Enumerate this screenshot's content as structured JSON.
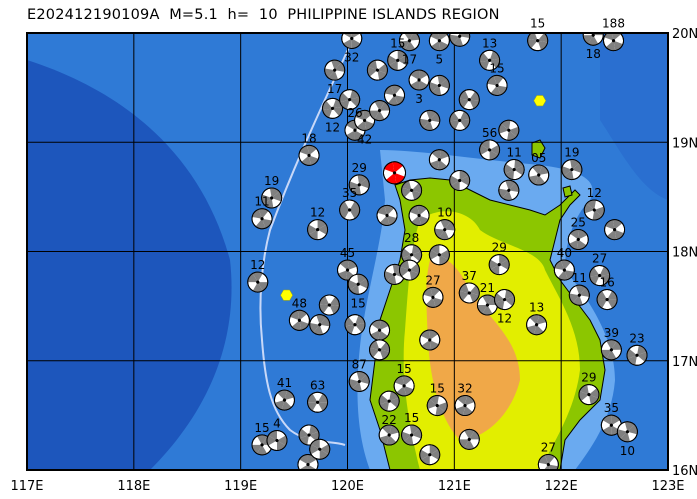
{
  "title": "E202412190109A  M=5.1  h=  10  PHILIPPINE ISLANDS REGION",
  "map": {
    "lon_range": [
      117,
      123
    ],
    "lat_range": [
      16,
      20
    ],
    "lon_ticks": [
      "117E",
      "118E",
      "119E",
      "120E",
      "121E",
      "122E",
      "123E"
    ],
    "lat_ticks": [
      "20N",
      "19N",
      "18N",
      "17N",
      "16N"
    ],
    "grid": true,
    "colors": {
      "deep_ocean": "#1f5fc8",
      "ocean": "#2f7ad6",
      "shelf": "#6aaaf0",
      "land_low": "#8cc600",
      "land_mid": "#e2ee00",
      "land_high": "#f0a848",
      "compressional": "#808080",
      "event": "#ff0000",
      "marker": "#ffff00"
    }
  },
  "event": {
    "lon": 120.44,
    "lat": 18.72,
    "strike": 20,
    "color": "#ff0000"
  },
  "markers": [
    {
      "lon": 119.43,
      "lat": 17.6
    },
    {
      "lon": 121.8,
      "lat": 19.38
    }
  ],
  "mechanisms": [
    {
      "lon": 120.04,
      "lat": 19.95,
      "label": "32",
      "strike": 30
    },
    {
      "lon": 119.88,
      "lat": 19.66,
      "label": "17",
      "strike": 70
    },
    {
      "lon": 119.86,
      "lat": 19.31,
      "label": "12",
      "strike": 110
    },
    {
      "lon": 119.64,
      "lat": 18.88,
      "label": "18",
      "strike": 20
    },
    {
      "lon": 119.29,
      "lat": 18.49,
      "label": "19",
      "strike": 80
    },
    {
      "lon": 119.2,
      "lat": 18.3,
      "label": "11",
      "strike": 10
    },
    {
      "lon": 119.72,
      "lat": 18.2,
      "label": "12",
      "strike": 90
    },
    {
      "lon": 119.16,
      "lat": 17.72,
      "label": "12",
      "strike": 0
    },
    {
      "lon": 119.41,
      "lat": 16.64,
      "label": "41",
      "strike": 45
    },
    {
      "lon": 119.72,
      "lat": 16.62,
      "label": "63",
      "strike": 120
    },
    {
      "lon": 119.2,
      "lat": 16.23,
      "label": "15",
      "strike": 60
    },
    {
      "lon": 119.34,
      "lat": 16.27,
      "label": "4",
      "strike": 150
    },
    {
      "lon": 119.63,
      "lat": 16.05,
      "label": "",
      "strike": 30
    },
    {
      "lon": 120.11,
      "lat": 16.81,
      "label": "87",
      "strike": 75
    },
    {
      "lon": 120.53,
      "lat": 16.77,
      "label": "15",
      "strike": 20
    },
    {
      "lon": 120.39,
      "lat": 16.63,
      "label": "22",
      "strike": 100
    },
    {
      "lon": 120.84,
      "lat": 16.59,
      "label": "15",
      "strike": 160
    },
    {
      "lon": 121.1,
      "lat": 16.59,
      "label": "32",
      "strike": 40
    },
    {
      "lon": 120.6,
      "lat": 16.32,
      "label": "15",
      "strike": 80
    },
    {
      "lon": 121.14,
      "lat": 17.62,
      "label": "37",
      "strike": 130
    },
    {
      "lon": 120.8,
      "lat": 17.58,
      "label": "27",
      "strike": 15
    },
    {
      "lon": 121.31,
      "lat": 17.51,
      "label": "21",
      "strike": 60
    },
    {
      "lon": 121.47,
      "lat": 17.56,
      "label": "12",
      "strike": 100
    },
    {
      "lon": 121.77,
      "lat": 17.33,
      "label": "13",
      "strike": 45
    },
    {
      "lon": 121.42,
      "lat": 17.88,
      "label": "29",
      "strike": 90
    },
    {
      "lon": 122.03,
      "lat": 17.83,
      "label": "40",
      "strike": 10
    },
    {
      "lon": 122.17,
      "lat": 17.6,
      "label": "11",
      "strike": 70
    },
    {
      "lon": 122.43,
      "lat": 17.56,
      "label": "16",
      "strike": 120
    },
    {
      "lon": 122.16,
      "lat": 18.11,
      "label": "25",
      "strike": 35
    },
    {
      "lon": 122.1,
      "lat": 18.75,
      "label": "19",
      "strike": 80
    },
    {
      "lon": 122.31,
      "lat": 18.38,
      "label": "12",
      "strike": 160
    },
    {
      "lon": 122.5,
      "lat": 18.2,
      "label": "",
      "strike": 20
    },
    {
      "lon": 122.47,
      "lat": 17.1,
      "label": "39",
      "strike": 60
    },
    {
      "lon": 122.71,
      "lat": 17.05,
      "label": "23",
      "strike": 100
    },
    {
      "lon": 122.26,
      "lat": 16.69,
      "label": "29",
      "strike": 140
    },
    {
      "lon": 122.47,
      "lat": 16.41,
      "label": "35",
      "strike": 30
    },
    {
      "lon": 122.62,
      "lat": 16.35,
      "label": "10",
      "strike": 75
    },
    {
      "lon": 121.88,
      "lat": 16.05,
      "label": "27",
      "strike": 10
    },
    {
      "lon": 121.79,
      "lat": 18.7,
      "label": "05",
      "strike": 50
    },
    {
      "lon": 121.56,
      "lat": 18.75,
      "label": "11",
      "strike": 95
    },
    {
      "lon": 122.49,
      "lat": 19.93,
      "label": "188",
      "strike": 20
    },
    {
      "lon": 122.3,
      "lat": 19.98,
      "label": "18",
      "strike": 60
    },
    {
      "lon": 121.78,
      "lat": 19.93,
      "label": "15",
      "strike": 130
    },
    {
      "lon": 120.86,
      "lat": 19.93,
      "label": "5",
      "strike": 25
    },
    {
      "lon": 121.05,
      "lat": 19.97,
      "label": "",
      "strike": 70
    },
    {
      "lon": 121.33,
      "lat": 19.75,
      "label": "13",
      "strike": 110
    },
    {
      "lon": 121.4,
      "lat": 19.52,
      "label": "15",
      "strike": 10
    },
    {
      "lon": 120.58,
      "lat": 19.93,
      "label": "17",
      "strike": 55
    },
    {
      "lon": 120.47,
      "lat": 19.75,
      "label": "15",
      "strike": 90
    },
    {
      "lon": 120.28,
      "lat": 19.66,
      "label": "",
      "strike": 140
    },
    {
      "lon": 120.07,
      "lat": 19.11,
      "label": "26",
      "strike": 30
    },
    {
      "lon": 120.11,
      "lat": 18.61,
      "label": "29",
      "strike": 80
    },
    {
      "lon": 120.02,
      "lat": 18.38,
      "label": "35",
      "strike": 120
    },
    {
      "lon": 120.37,
      "lat": 18.33,
      "label": "",
      "strike": 15
    },
    {
      "lon": 120.91,
      "lat": 18.2,
      "label": "10",
      "strike": 65
    },
    {
      "lon": 120.6,
      "lat": 17.97,
      "label": "28",
      "strike": 100
    },
    {
      "lon": 120.86,
      "lat": 17.97,
      "label": "",
      "strike": 150
    },
    {
      "lon": 120.0,
      "lat": 17.83,
      "label": "45",
      "strike": 40
    },
    {
      "lon": 120.1,
      "lat": 17.7,
      "label": "15",
      "strike": 85
    },
    {
      "lon": 119.83,
      "lat": 17.51,
      "label": "",
      "strike": 125
    },
    {
      "lon": 119.55,
      "lat": 17.37,
      "label": "48",
      "strike": 20
    },
    {
      "lon": 119.74,
      "lat": 17.33,
      "label": "",
      "strike": 70
    },
    {
      "lon": 120.07,
      "lat": 17.33,
      "label": "",
      "strike": 110
    },
    {
      "lon": 120.3,
      "lat": 17.28,
      "label": "",
      "strike": 35
    },
    {
      "lon": 120.44,
      "lat": 17.79,
      "label": "",
      "strike": 80
    },
    {
      "lon": 120.58,
      "lat": 17.83,
      "label": "",
      "strike": 140
    },
    {
      "lon": 120.77,
      "lat": 17.19,
      "label": "",
      "strike": 25
    },
    {
      "lon": 121.14,
      "lat": 16.28,
      "label": "",
      "strike": 60
    },
    {
      "lon": 119.64,
      "lat": 16.32,
      "label": "",
      "strike": 100
    },
    {
      "lon": 119.74,
      "lat": 16.19,
      "label": "",
      "strike": 150
    },
    {
      "lon": 120.39,
      "lat": 16.32,
      "label": "",
      "strike": 45
    },
    {
      "lon": 120.77,
      "lat": 16.14,
      "label": "",
      "strike": 90
    },
    {
      "lon": 120.3,
      "lat": 17.1,
      "label": "",
      "strike": 130
    },
    {
      "lon": 120.16,
      "lat": 19.2,
      "label": "42",
      "strike": 20
    },
    {
      "lon": 120.77,
      "lat": 19.2,
      "label": "",
      "strike": 70
    },
    {
      "lon": 121.05,
      "lat": 19.2,
      "label": "",
      "strike": 115
    },
    {
      "lon": 121.51,
      "lat": 19.11,
      "label": "",
      "strike": 160
    },
    {
      "lon": 120.67,
      "lat": 19.57,
      "label": "3",
      "strike": 30
    },
    {
      "lon": 120.86,
      "lat": 19.52,
      "label": "",
      "strike": 80
    },
    {
      "lon": 121.14,
      "lat": 19.39,
      "label": "",
      "strike": 125
    },
    {
      "lon": 120.44,
      "lat": 19.43,
      "label": "",
      "strike": 10
    },
    {
      "lon": 120.3,
      "lat": 19.29,
      "label": "",
      "strike": 60
    },
    {
      "lon": 120.02,
      "lat": 19.39,
      "label": "",
      "strike": 105
    },
    {
      "lon": 121.33,
      "lat": 18.93,
      "label": "56",
      "strike": 150
    },
    {
      "lon": 120.86,
      "lat": 18.84,
      "label": "",
      "strike": 40
    },
    {
      "lon": 121.05,
      "lat": 18.65,
      "label": "",
      "strike": 90
    },
    {
      "lon": 120.6,
      "lat": 18.56,
      "label": "",
      "strike": 135
    },
    {
      "lon": 120.67,
      "lat": 18.33,
      "label": "",
      "strike": 20
    },
    {
      "lon": 121.51,
      "lat": 18.56,
      "label": "",
      "strike": 70
    },
    {
      "lon": 122.36,
      "lat": 17.78,
      "label": "27",
      "strike": 115
    }
  ]
}
